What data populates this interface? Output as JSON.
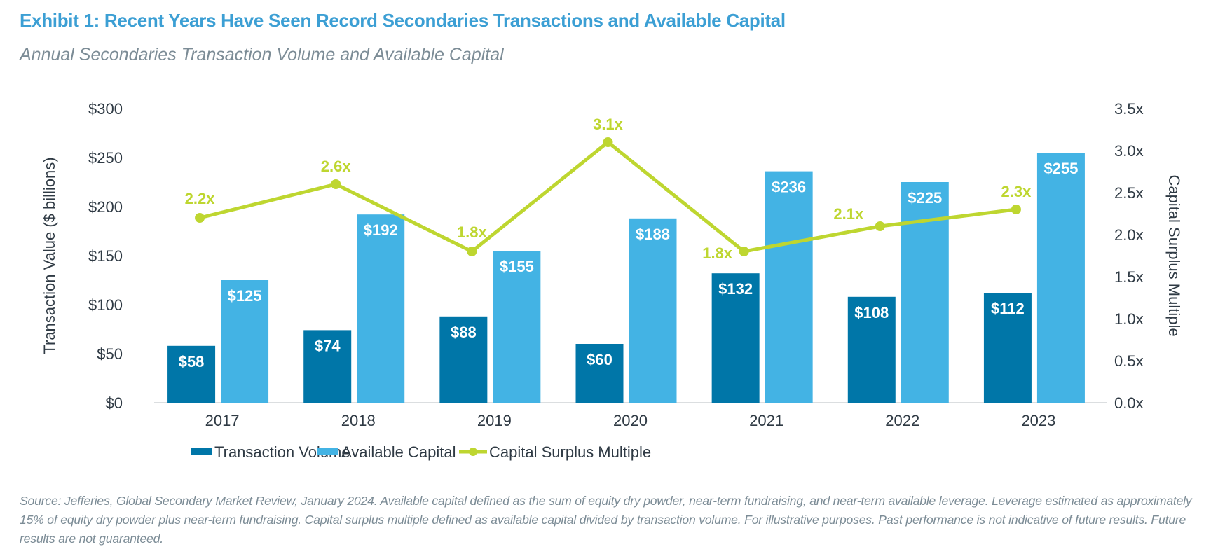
{
  "title": "Exhibit 1: Recent Years Have Seen Record Secondaries Transactions and Available Capital",
  "subtitle": "Annual Secondaries Transaction Volume and Available Capital",
  "footnote": "Source: Jefferies, Global Secondary Market Review, January 2024. Available capital defined as the sum of equity dry powder, near-term fundraising, and near-term available leverage. Leverage estimated as approximately 15% of equity dry powder plus near-term fundraising. Capital surplus multiple defined as available capital divided by transaction volume. For illustrative purposes. Past performance is not indicative of future results. Future results are not guaranteed.",
  "chart_data": {
    "type": "bar+line",
    "categories": [
      "2017",
      "2018",
      "2019",
      "2020",
      "2021",
      "2022",
      "2023"
    ],
    "series": [
      {
        "name": "Transaction Volume",
        "type": "bar",
        "axis": "left",
        "color": "#0076A8",
        "values": [
          58,
          74,
          88,
          60,
          132,
          108,
          112
        ],
        "labels": [
          "$58",
          "$74",
          "$88",
          "$60",
          "$132",
          "$108",
          "$112"
        ]
      },
      {
        "name": "Available Capital",
        "type": "bar",
        "axis": "left",
        "color": "#43B3E4",
        "values": [
          125,
          192,
          155,
          188,
          236,
          225,
          255
        ],
        "labels": [
          "$125",
          "$192",
          "$155",
          "$188",
          "$236",
          "$225",
          "$255"
        ]
      },
      {
        "name": "Capital Surplus Multiple",
        "type": "line",
        "axis": "right",
        "color": "#BED630",
        "values": [
          2.2,
          2.6,
          1.8,
          3.1,
          1.8,
          2.1,
          2.3
        ],
        "labels": [
          "2.2x",
          "2.6x",
          "1.8x",
          "3.1x",
          "1.8x",
          "2.1x",
          "2.3x"
        ]
      }
    ],
    "ylabel": "Transaction Value ($ billions)",
    "ylim": [
      0,
      300
    ],
    "yticks": [
      "$0",
      "$50",
      "$100",
      "$150",
      "$200",
      "$250",
      "$300"
    ],
    "y2label": "Capital Surplus Multiple",
    "y2lim": [
      0,
      3.5
    ],
    "y2ticks": [
      "0.0x",
      "0.5x",
      "1.0x",
      "1.5x",
      "2.0x",
      "2.5x",
      "3.0x",
      "3.5x"
    ],
    "grid": false,
    "legend": "bottom"
  }
}
